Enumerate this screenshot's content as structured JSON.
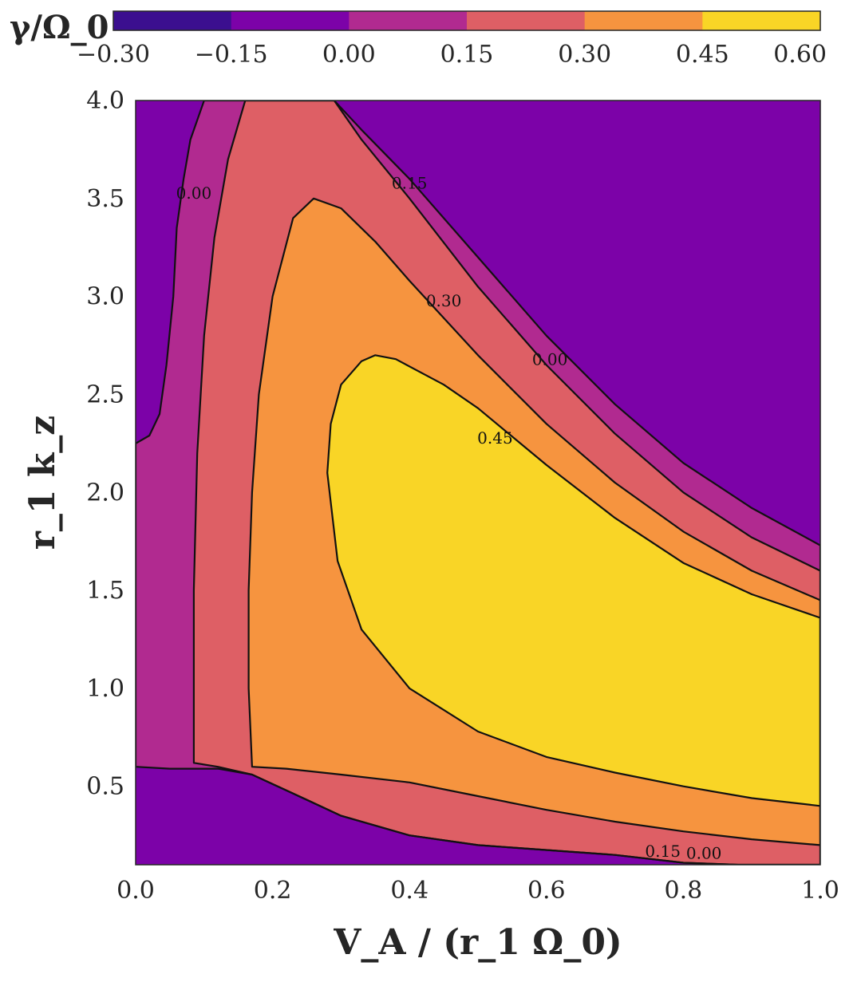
{
  "chart_data": {
    "type": "heatmap",
    "subtype": "filled-contour",
    "xlabel": "V_A / (r_1 Ω_0)",
    "ylabel": "r_1 k_z",
    "xlim": [
      0.0,
      1.0
    ],
    "ylim": [
      0.1,
      4.0
    ],
    "x_ticks": [
      "0.0",
      "0.2",
      "0.4",
      "0.6",
      "0.8",
      "1.0"
    ],
    "y_ticks": [
      "0.5",
      "1.0",
      "1.5",
      "2.0",
      "2.5",
      "3.0",
      "3.5",
      "4.0"
    ],
    "grid": false,
    "colorbar": {
      "title": "γ/Ω_0",
      "placement": "top",
      "tick_labels": [
        "−0.30",
        "−0.15",
        "0.00",
        "0.15",
        "0.30",
        "0.45",
        "0.60"
      ],
      "levels": [
        -0.3,
        -0.15,
        0.0,
        0.15,
        0.3,
        0.45,
        0.6
      ],
      "colors": [
        "#3b0f8f",
        "#7c02a8",
        "#b12a90",
        "#de5f65",
        "#f6943f",
        "#f9d526"
      ]
    },
    "contour_levels": [
      0.0,
      0.15,
      0.3,
      0.45
    ],
    "contour_labels": [
      {
        "text": "0.00",
        "x": 0.085,
        "y": 3.5
      },
      {
        "text": "0.15",
        "x": 0.4,
        "y": 3.55
      },
      {
        "text": "0.30",
        "x": 0.45,
        "y": 2.95
      },
      {
        "text": "0.00",
        "x": 0.605,
        "y": 2.65
      },
      {
        "text": "0.45",
        "x": 0.525,
        "y": 2.25
      },
      {
        "text": "0.15",
        "x": 0.77,
        "y": 0.14
      },
      {
        "text": "0.00",
        "x": 0.83,
        "y": 0.13
      }
    ],
    "regions": [
      {
        "level": 0.0,
        "boundary": [
          [
            0.0,
            2.25
          ],
          [
            0.02,
            2.29
          ],
          [
            0.035,
            2.4
          ],
          [
            0.045,
            2.65
          ],
          [
            0.055,
            3.0
          ],
          [
            0.06,
            3.35
          ],
          [
            0.07,
            3.6
          ],
          [
            0.08,
            3.8
          ],
          [
            0.1,
            4.0
          ],
          [
            0.29,
            4.0
          ],
          [
            0.33,
            3.85
          ],
          [
            0.4,
            3.6
          ],
          [
            0.5,
            3.2
          ],
          [
            0.6,
            2.8
          ],
          [
            0.7,
            2.45
          ],
          [
            0.8,
            2.15
          ],
          [
            0.9,
            1.92
          ],
          [
            1.0,
            1.73
          ],
          [
            1.0,
            0.1
          ],
          [
            0.88,
            0.1
          ],
          [
            0.8,
            0.11
          ],
          [
            0.7,
            0.15
          ],
          [
            0.5,
            0.2
          ],
          [
            0.4,
            0.25
          ],
          [
            0.3,
            0.35
          ],
          [
            0.22,
            0.48
          ],
          [
            0.17,
            0.56
          ],
          [
            0.12,
            0.59
          ],
          [
            0.05,
            0.59
          ],
          [
            0.0,
            0.6
          ]
        ]
      },
      {
        "level": 0.15,
        "boundary": [
          [
            0.085,
            0.62
          ],
          [
            0.085,
            1.5
          ],
          [
            0.09,
            2.2
          ],
          [
            0.1,
            2.8
          ],
          [
            0.115,
            3.3
          ],
          [
            0.135,
            3.7
          ],
          [
            0.16,
            4.0
          ],
          [
            0.29,
            4.0
          ],
          [
            0.33,
            3.8
          ],
          [
            0.4,
            3.5
          ],
          [
            0.5,
            3.05
          ],
          [
            0.6,
            2.65
          ],
          [
            0.7,
            2.3
          ],
          [
            0.8,
            2.0
          ],
          [
            0.9,
            1.77
          ],
          [
            1.0,
            1.6
          ],
          [
            1.0,
            0.1
          ],
          [
            0.88,
            0.1
          ],
          [
            0.8,
            0.11
          ],
          [
            0.7,
            0.15
          ],
          [
            0.5,
            0.2
          ],
          [
            0.4,
            0.25
          ],
          [
            0.3,
            0.35
          ],
          [
            0.22,
            0.48
          ],
          [
            0.17,
            0.56
          ],
          [
            0.12,
            0.6
          ]
        ]
      },
      {
        "level": 0.3,
        "boundary": [
          [
            0.17,
            0.6
          ],
          [
            0.165,
            1.0
          ],
          [
            0.165,
            1.5
          ],
          [
            0.17,
            2.0
          ],
          [
            0.18,
            2.5
          ],
          [
            0.2,
            3.0
          ],
          [
            0.23,
            3.4
          ],
          [
            0.26,
            3.5
          ],
          [
            0.3,
            3.45
          ],
          [
            0.35,
            3.28
          ],
          [
            0.4,
            3.08
          ],
          [
            0.5,
            2.7
          ],
          [
            0.6,
            2.35
          ],
          [
            0.7,
            2.05
          ],
          [
            0.8,
            1.8
          ],
          [
            0.9,
            1.6
          ],
          [
            1.0,
            1.45
          ],
          [
            1.0,
            0.2
          ],
          [
            0.9,
            0.23
          ],
          [
            0.8,
            0.27
          ],
          [
            0.7,
            0.32
          ],
          [
            0.6,
            0.38
          ],
          [
            0.5,
            0.45
          ],
          [
            0.4,
            0.52
          ],
          [
            0.3,
            0.56
          ],
          [
            0.22,
            0.59
          ]
        ]
      },
      {
        "level": 0.45,
        "boundary": [
          [
            0.28,
            2.1
          ],
          [
            0.285,
            2.35
          ],
          [
            0.3,
            2.55
          ],
          [
            0.33,
            2.67
          ],
          [
            0.35,
            2.7
          ],
          [
            0.38,
            2.68
          ],
          [
            0.45,
            2.55
          ],
          [
            0.5,
            2.43
          ],
          [
            0.6,
            2.14
          ],
          [
            0.7,
            1.87
          ],
          [
            0.8,
            1.64
          ],
          [
            0.9,
            1.48
          ],
          [
            1.0,
            1.36
          ],
          [
            1.0,
            0.4
          ],
          [
            0.9,
            0.44
          ],
          [
            0.8,
            0.5
          ],
          [
            0.7,
            0.57
          ],
          [
            0.6,
            0.65
          ],
          [
            0.5,
            0.78
          ],
          [
            0.4,
            1.0
          ],
          [
            0.33,
            1.3
          ],
          [
            0.295,
            1.65
          ]
        ]
      }
    ]
  }
}
